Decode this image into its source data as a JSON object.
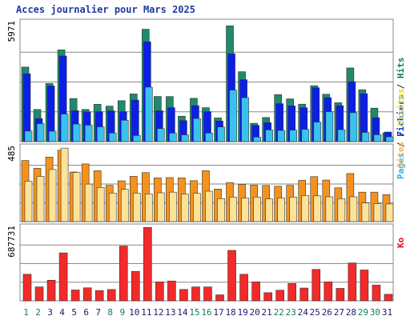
{
  "chart_data": {
    "type": "bar",
    "title": "Acces journalier pour Mars 2025",
    "categories": [
      "1",
      "2",
      "3",
      "4",
      "5",
      "6",
      "7",
      "8",
      "9",
      "10",
      "11",
      "12",
      "13",
      "14",
      "15",
      "16",
      "17",
      "18",
      "19",
      "20",
      "21",
      "22",
      "23",
      "24",
      "25",
      "26",
      "27",
      "28",
      "29",
      "30",
      "31"
    ],
    "weekend_days": [
      "1",
      "2",
      "8",
      "9",
      "15",
      "16",
      "22",
      "23",
      "29",
      "30"
    ],
    "panels": [
      {
        "id": "hits",
        "ymax_label": "5971",
        "ymax": 5971,
        "grid": true,
        "legend": [
          {
            "label": "Pages",
            "color": "#33b1e8"
          },
          {
            "label": "Fichiers",
            "color": "#0a3de0"
          },
          {
            "label": "Hits",
            "color": "#0f7e5f"
          }
        ],
        "series": [
          {
            "name": "Hits",
            "color": "#1f8a6c",
            "values": [
              3735,
              1609,
              2911,
              4594,
              2159,
              1609,
              1871,
              1778,
              2050,
              2387,
              5630,
              2262,
              2257,
              1272,
              2170,
              1700,
              1186,
              5800,
              3500,
              917,
              1208,
              2355,
              2141,
              1876,
              2800,
              2372,
              1948,
              3691,
              2600,
              1676,
              435
            ]
          },
          {
            "name": "Fichiers",
            "color": "#0b1fe6",
            "values": [
              3400,
              1151,
              2787,
              4289,
              1547,
              1489,
              1500,
              1542,
              1500,
              2081,
              5000,
              1548,
              1700,
              1053,
              1800,
              1500,
              1030,
              4400,
              3100,
              815,
              945,
              1900,
              1788,
              1700,
              2700,
              2200,
              1800,
              3000,
              2400,
              1200,
              480
            ]
          },
          {
            "name": "Pages",
            "color": "#3ac2ef",
            "values": [
              530,
              900,
              521,
              1379,
              877,
              824,
              738,
              432,
              1070,
              303,
              2727,
              651,
              423,
              337,
              1157,
              431,
              733,
              2581,
              2200,
              228,
              585,
              560,
              573,
              614,
              976,
              1500,
              598,
              1447,
              460,
              343,
              240
            ]
          }
        ]
      },
      {
        "id": "visits",
        "ymax_label": "485",
        "ymax": 485,
        "grid": true,
        "legend": [
          {
            "label": "Sites",
            "color": "#f5b25c"
          },
          {
            "label": "Visites",
            "color": "#e5e024"
          }
        ],
        "series": [
          {
            "name": "Visites",
            "color": "#f5921e",
            "values": [
              394,
              344,
              416,
              461,
              320,
              372,
              328,
              234,
              263,
              292,
              316,
              282,
              284,
              282,
              264,
              328,
              210,
              252,
              240,
              236,
              233,
              228,
              234,
              266,
              290,
              268,
              218,
              310,
              190,
              190,
              174
            ]
          },
          {
            "name": "Sites",
            "color": "#fce39a",
            "values": [
              260,
              292,
              336,
              474,
              317,
              242,
              220,
              184,
              208,
              184,
              178,
              186,
              190,
              178,
              182,
              196,
              148,
              158,
              152,
              158,
              146,
              152,
              158,
              168,
              166,
              160,
              148,
              160,
              120,
              116,
              114
            ]
          }
        ]
      },
      {
        "id": "kb",
        "ymax_label": "687731",
        "ymax": 687731,
        "grid": true,
        "legend": [
          {
            "label": "Ko",
            "color": "#e30f1e"
          }
        ],
        "series": [
          {
            "name": "Ko",
            "color": "#f22a2a",
            "values": [
              245000,
              128000,
              190000,
              443000,
              100000,
              120000,
              95000,
              105000,
              506000,
              272000,
              678000,
              175000,
              183000,
              105000,
              128000,
              128000,
              55000,
              466000,
              245000,
              175000,
              75000,
              98000,
              160000,
              118000,
              290000,
              175000,
              115000,
              350000,
              285000,
              145000,
              60000
            ]
          }
        ]
      }
    ]
  }
}
